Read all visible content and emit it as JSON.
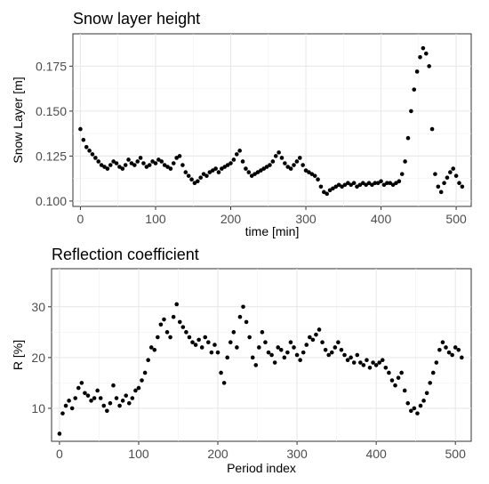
{
  "charts": [
    {
      "type": "scatter",
      "title": "Snow layer height",
      "xlabel": "time [min]",
      "ylabel": "Snow Layer [m]",
      "xlim": [
        -10,
        520
      ],
      "ylim": [
        0.097,
        0.193
      ],
      "xticks": [
        0,
        100,
        200,
        300,
        400,
        500
      ],
      "yticks": [
        0.1,
        0.125,
        0.15,
        0.175
      ],
      "ytick_labels": [
        "0.100",
        "0.125",
        "0.150",
        "0.175"
      ],
      "grid": true,
      "point_color": "#000000",
      "series": [
        {
          "x": [
            0,
            4,
            8,
            12,
            16,
            20,
            24,
            28,
            32,
            36,
            40,
            44,
            48,
            52,
            56,
            60,
            64,
            68,
            72,
            76,
            80,
            84,
            88,
            92,
            96,
            100,
            104,
            108,
            112,
            116,
            120,
            124,
            128,
            132,
            136,
            140,
            144,
            148,
            152,
            156,
            160,
            164,
            168,
            172,
            176,
            180,
            184,
            188,
            192,
            196,
            200,
            204,
            208,
            212,
            216,
            220,
            224,
            228,
            232,
            236,
            240,
            244,
            248,
            252,
            256,
            260,
            264,
            268,
            272,
            276,
            280,
            284,
            288,
            292,
            296,
            300,
            304,
            308,
            312,
            316,
            320,
            324,
            328,
            332,
            336,
            340,
            344,
            348,
            352,
            356,
            360,
            364,
            368,
            372,
            376,
            380,
            384,
            388,
            392,
            396,
            400,
            404,
            408,
            412,
            416,
            420,
            424,
            428,
            432,
            436,
            440,
            444,
            448,
            452,
            456,
            460,
            464,
            468,
            472,
            476,
            480,
            484,
            488,
            492,
            496,
            500,
            504,
            508
          ],
          "y": [
            0.14,
            0.134,
            0.13,
            0.128,
            0.126,
            0.124,
            0.122,
            0.12,
            0.119,
            0.118,
            0.12,
            0.122,
            0.121,
            0.119,
            0.118,
            0.12,
            0.123,
            0.121,
            0.12,
            0.122,
            0.124,
            0.121,
            0.119,
            0.12,
            0.122,
            0.121,
            0.123,
            0.122,
            0.12,
            0.119,
            0.118,
            0.121,
            0.124,
            0.125,
            0.12,
            0.116,
            0.114,
            0.112,
            0.11,
            0.111,
            0.113,
            0.115,
            0.114,
            0.116,
            0.117,
            0.118,
            0.116,
            0.118,
            0.119,
            0.12,
            0.121,
            0.123,
            0.126,
            0.128,
            0.122,
            0.118,
            0.116,
            0.114,
            0.115,
            0.116,
            0.117,
            0.118,
            0.119,
            0.12,
            0.122,
            0.125,
            0.127,
            0.124,
            0.121,
            0.119,
            0.118,
            0.12,
            0.122,
            0.124,
            0.12,
            0.117,
            0.116,
            0.115,
            0.114,
            0.112,
            0.108,
            0.105,
            0.104,
            0.106,
            0.107,
            0.108,
            0.109,
            0.108,
            0.109,
            0.11,
            0.109,
            0.11,
            0.108,
            0.109,
            0.11,
            0.109,
            0.11,
            0.109,
            0.11,
            0.11,
            0.111,
            0.109,
            0.11,
            0.11,
            0.109,
            0.11,
            0.111,
            0.115,
            0.122,
            0.135,
            0.15,
            0.162,
            0.172,
            0.18,
            0.185,
            0.182,
            0.175,
            0.14,
            0.115,
            0.108,
            0.105,
            0.11,
            0.113,
            0.116,
            0.118,
            0.114,
            0.11,
            0.108
          ]
        }
      ]
    },
    {
      "type": "scatter",
      "title": "Reflection coefficient",
      "xlabel": "Period index",
      "ylabel": "R [%]",
      "xlim": [
        -10,
        520
      ],
      "ylim": [
        3.5,
        37.5
      ],
      "xticks": [
        0,
        100,
        200,
        300,
        400,
        500
      ],
      "yticks": [
        10,
        20,
        30
      ],
      "ytick_labels": [
        "10",
        "20",
        "30"
      ],
      "grid": true,
      "point_color": "#000000",
      "series": [
        {
          "x": [
            0,
            4,
            8,
            12,
            16,
            20,
            24,
            28,
            32,
            36,
            40,
            44,
            48,
            52,
            56,
            60,
            64,
            68,
            72,
            76,
            80,
            84,
            88,
            92,
            96,
            100,
            104,
            108,
            112,
            116,
            120,
            124,
            128,
            132,
            136,
            140,
            144,
            148,
            152,
            156,
            160,
            164,
            168,
            172,
            176,
            180,
            184,
            188,
            192,
            196,
            200,
            204,
            208,
            212,
            216,
            220,
            224,
            228,
            232,
            236,
            240,
            244,
            248,
            252,
            256,
            260,
            264,
            268,
            272,
            276,
            280,
            284,
            288,
            292,
            296,
            300,
            304,
            308,
            312,
            316,
            320,
            324,
            328,
            332,
            336,
            340,
            344,
            348,
            352,
            356,
            360,
            364,
            368,
            372,
            376,
            380,
            384,
            388,
            392,
            396,
            400,
            404,
            408,
            412,
            416,
            420,
            424,
            428,
            432,
            436,
            440,
            444,
            448,
            452,
            456,
            460,
            464,
            468,
            472,
            476,
            480,
            484,
            488,
            492,
            496,
            500,
            504,
            508
          ],
          "y": [
            5.0,
            9.0,
            10.5,
            11.5,
            10.0,
            12.0,
            14.0,
            15.0,
            13.0,
            12.5,
            11.5,
            12.0,
            13.5,
            12.0,
            10.5,
            9.5,
            11.0,
            14.5,
            12.0,
            10.5,
            11.5,
            12.5,
            11.0,
            12.0,
            13.5,
            14.0,
            15.5,
            17.0,
            19.5,
            22.0,
            21.5,
            24.0,
            26.5,
            27.5,
            25.0,
            24.0,
            28.0,
            30.5,
            27.0,
            26.0,
            25.0,
            24.0,
            23.0,
            22.5,
            23.5,
            22.0,
            24.0,
            23.0,
            21.0,
            22.5,
            21.0,
            17.0,
            15.0,
            20.0,
            23.0,
            25.0,
            22.0,
            28.0,
            30.0,
            27.0,
            24.0,
            20.0,
            18.5,
            22.0,
            25.0,
            23.0,
            21.0,
            20.5,
            19.0,
            22.0,
            21.5,
            20.0,
            21.0,
            23.0,
            22.0,
            20.5,
            19.5,
            21.0,
            22.5,
            24.0,
            23.5,
            24.5,
            25.5,
            23.0,
            21.5,
            20.5,
            21.0,
            22.0,
            23.0,
            21.5,
            20.5,
            19.5,
            20.0,
            19.0,
            20.5,
            19.0,
            18.5,
            19.5,
            18.0,
            19.0,
            18.5,
            19.0,
            19.5,
            18.0,
            17.0,
            15.5,
            14.5,
            16.0,
            17.0,
            13.5,
            11.0,
            9.5,
            10.0,
            9.0,
            10.5,
            11.5,
            13.0,
            15.0,
            17.0,
            19.0,
            21.5,
            23.0,
            22.0,
            21.0,
            20.5,
            22.0,
            21.5,
            20.0
          ]
        }
      ]
    }
  ]
}
